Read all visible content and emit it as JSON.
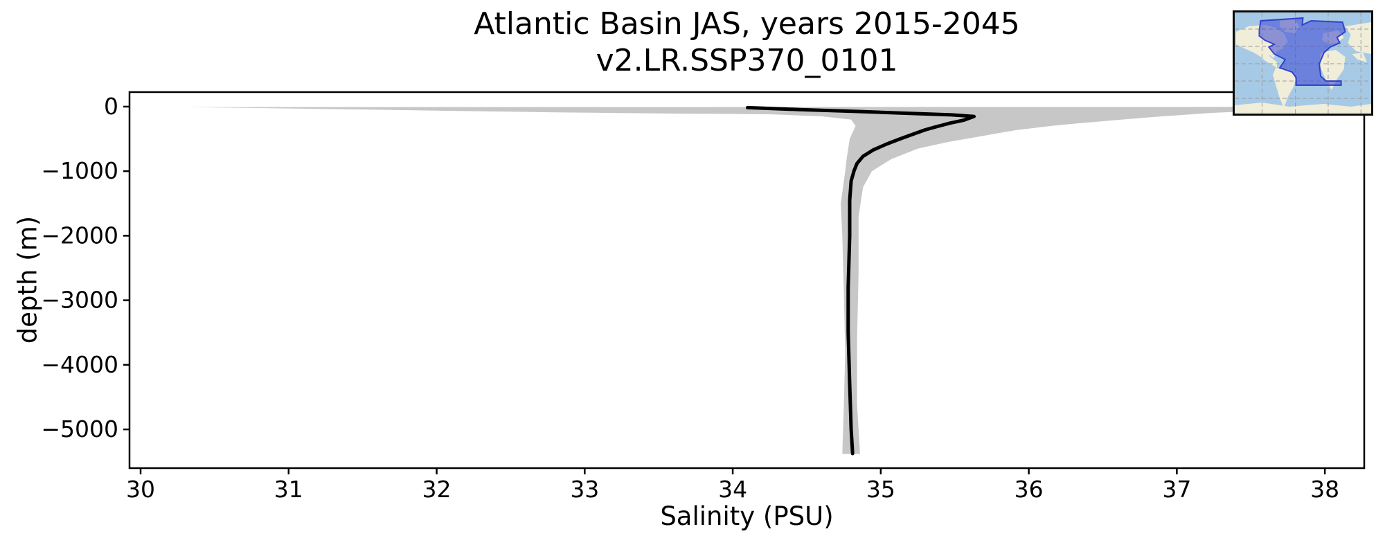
{
  "chart_data": {
    "type": "line",
    "title": "Atlantic Basin JAS, years 2015-2045",
    "subtitle": "v2.LR.SSP370_0101",
    "xlabel": "Salinity (PSU)",
    "ylabel": "depth (m)",
    "xlim": [
      29.925,
      38.266
    ],
    "ylim": [
      -5600,
      225
    ],
    "grid": false,
    "legend": "none",
    "x_ticks": [
      {
        "value": 30,
        "label": "30"
      },
      {
        "value": 31,
        "label": "31"
      },
      {
        "value": 32,
        "label": "32"
      },
      {
        "value": 33,
        "label": "33"
      },
      {
        "value": 34,
        "label": "34"
      },
      {
        "value": 35,
        "label": "35"
      },
      {
        "value": 36,
        "label": "36"
      },
      {
        "value": 37,
        "label": "37"
      },
      {
        "value": 38,
        "label": "38"
      }
    ],
    "y_ticks": [
      {
        "value": 0,
        "label": "0"
      },
      {
        "value": -1000,
        "label": "−1000"
      },
      {
        "value": -2000,
        "label": "−2000"
      },
      {
        "value": -3000,
        "label": "−3000"
      },
      {
        "value": -4000,
        "label": "−4000"
      },
      {
        "value": -5000,
        "label": "−5000"
      }
    ],
    "series": [
      {
        "name": "mean_salinity_profile",
        "color": "#000000",
        "line_width": 5,
        "points_salinity_depth": [
          [
            34.1,
            -15
          ],
          [
            34.45,
            -45
          ],
          [
            34.85,
            -75
          ],
          [
            35.2,
            -105
          ],
          [
            35.48,
            -128
          ],
          [
            35.63,
            -152
          ],
          [
            35.56,
            -210
          ],
          [
            35.47,
            -255
          ],
          [
            35.42,
            -285
          ],
          [
            35.37,
            -315
          ],
          [
            35.3,
            -360
          ],
          [
            35.22,
            -425
          ],
          [
            35.13,
            -500
          ],
          [
            35.04,
            -580
          ],
          [
            34.95,
            -670
          ],
          [
            34.88,
            -770
          ],
          [
            34.84,
            -880
          ],
          [
            34.82,
            -990
          ],
          [
            34.8,
            -1150
          ],
          [
            34.79,
            -1450
          ],
          [
            34.79,
            -2000
          ],
          [
            34.78,
            -2800
          ],
          [
            34.78,
            -3500
          ],
          [
            34.79,
            -4300
          ],
          [
            34.8,
            -5000
          ],
          [
            34.81,
            -5375
          ]
        ]
      }
    ],
    "band": {
      "name": "salinity_spread_envelope",
      "color": "#c7c7c7",
      "max_edge_salinity_depth": [
        [
          38.26,
          -5
        ],
        [
          37.8,
          -40
        ],
        [
          37.24,
          -97
        ],
        [
          36.9,
          -150
        ],
        [
          36.61,
          -204
        ],
        [
          36.3,
          -265
        ],
        [
          36.15,
          -300
        ],
        [
          35.91,
          -365
        ],
        [
          35.7,
          -450
        ],
        [
          35.45,
          -550
        ],
        [
          35.25,
          -650
        ],
        [
          35.07,
          -815
        ],
        [
          34.94,
          -1000
        ],
        [
          34.88,
          -1250
        ],
        [
          34.85,
          -1700
        ],
        [
          34.85,
          -2600
        ],
        [
          34.84,
          -3600
        ],
        [
          34.84,
          -4600
        ],
        [
          34.86,
          -5380
        ]
      ],
      "min_edge_salinity_depth": [
        [
          30.32,
          -8
        ],
        [
          31.2,
          -35
        ],
        [
          32.0,
          -62
        ],
        [
          32.8,
          -88
        ],
        [
          33.6,
          -108
        ],
        [
          34.25,
          -118
        ],
        [
          34.6,
          -150
        ],
        [
          34.8,
          -200
        ],
        [
          34.83,
          -300
        ],
        [
          34.79,
          -500
        ],
        [
          34.77,
          -800
        ],
        [
          34.76,
          -1000
        ],
        [
          34.73,
          -1500
        ],
        [
          34.74,
          -2000
        ],
        [
          34.75,
          -2800
        ],
        [
          34.76,
          -3800
        ],
        [
          34.75,
          -4700
        ],
        [
          34.74,
          -5380
        ]
      ]
    }
  },
  "inset_map": {
    "ocean_color": "#a6c9e6",
    "land_color": "#f0edd8",
    "grid_color": "#9a9a9a",
    "highlight_fill": "#3a46d2",
    "highlight_border": "#2a36c8",
    "region": "atlantic-basin"
  }
}
